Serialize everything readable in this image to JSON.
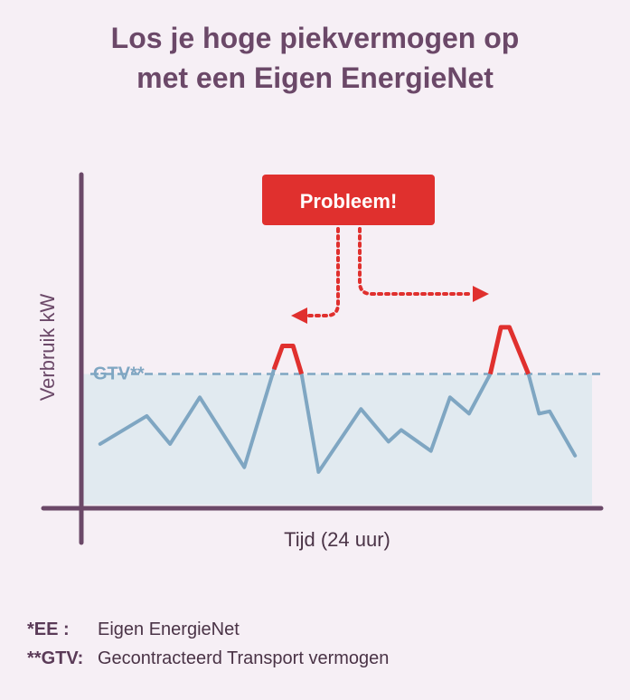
{
  "title": {
    "line1": "Los je hoge piekvermogen op",
    "line2": "met een Eigen EnergieNet"
  },
  "chart_data": {
    "type": "line",
    "xlabel": "Tijd (24 uur)",
    "ylabel": "Verbruik kW",
    "threshold": {
      "label": "GTV**",
      "value": 56
    },
    "callout": "Probleem!",
    "xlim": [
      0,
      24
    ],
    "ylim": [
      0,
      100
    ],
    "series": [
      {
        "values": [
          [
            0.8,
            26
          ],
          [
            3.0,
            38
          ],
          [
            4.1,
            26
          ],
          [
            5.5,
            46
          ],
          [
            7.6,
            16
          ],
          [
            9.0,
            58
          ],
          [
            9.4,
            68
          ],
          [
            9.9,
            68
          ],
          [
            10.3,
            56
          ],
          [
            11.1,
            14
          ],
          [
            13.1,
            41
          ],
          [
            14.4,
            27
          ],
          [
            15.0,
            32
          ],
          [
            16.4,
            23
          ],
          [
            17.3,
            46
          ],
          [
            18.2,
            39
          ],
          [
            19.2,
            56
          ],
          [
            19.7,
            76
          ],
          [
            20.1,
            76
          ],
          [
            21.0,
            56
          ],
          [
            21.5,
            39
          ],
          [
            22.0,
            40
          ],
          [
            23.2,
            21
          ]
        ]
      }
    ],
    "colors": {
      "line": "#7fa6c2",
      "peak": "#e0302e",
      "fill": "#e1eaf0",
      "axis": "#6b4868",
      "threshold": "#7fa6c2",
      "callout": "#e0302e"
    }
  },
  "footnotes": [
    {
      "key": "*EE :",
      "value": "Eigen EnergieNet"
    },
    {
      "key": "**GTV:",
      "value": "Gecontracteerd Transport vermogen"
    }
  ]
}
